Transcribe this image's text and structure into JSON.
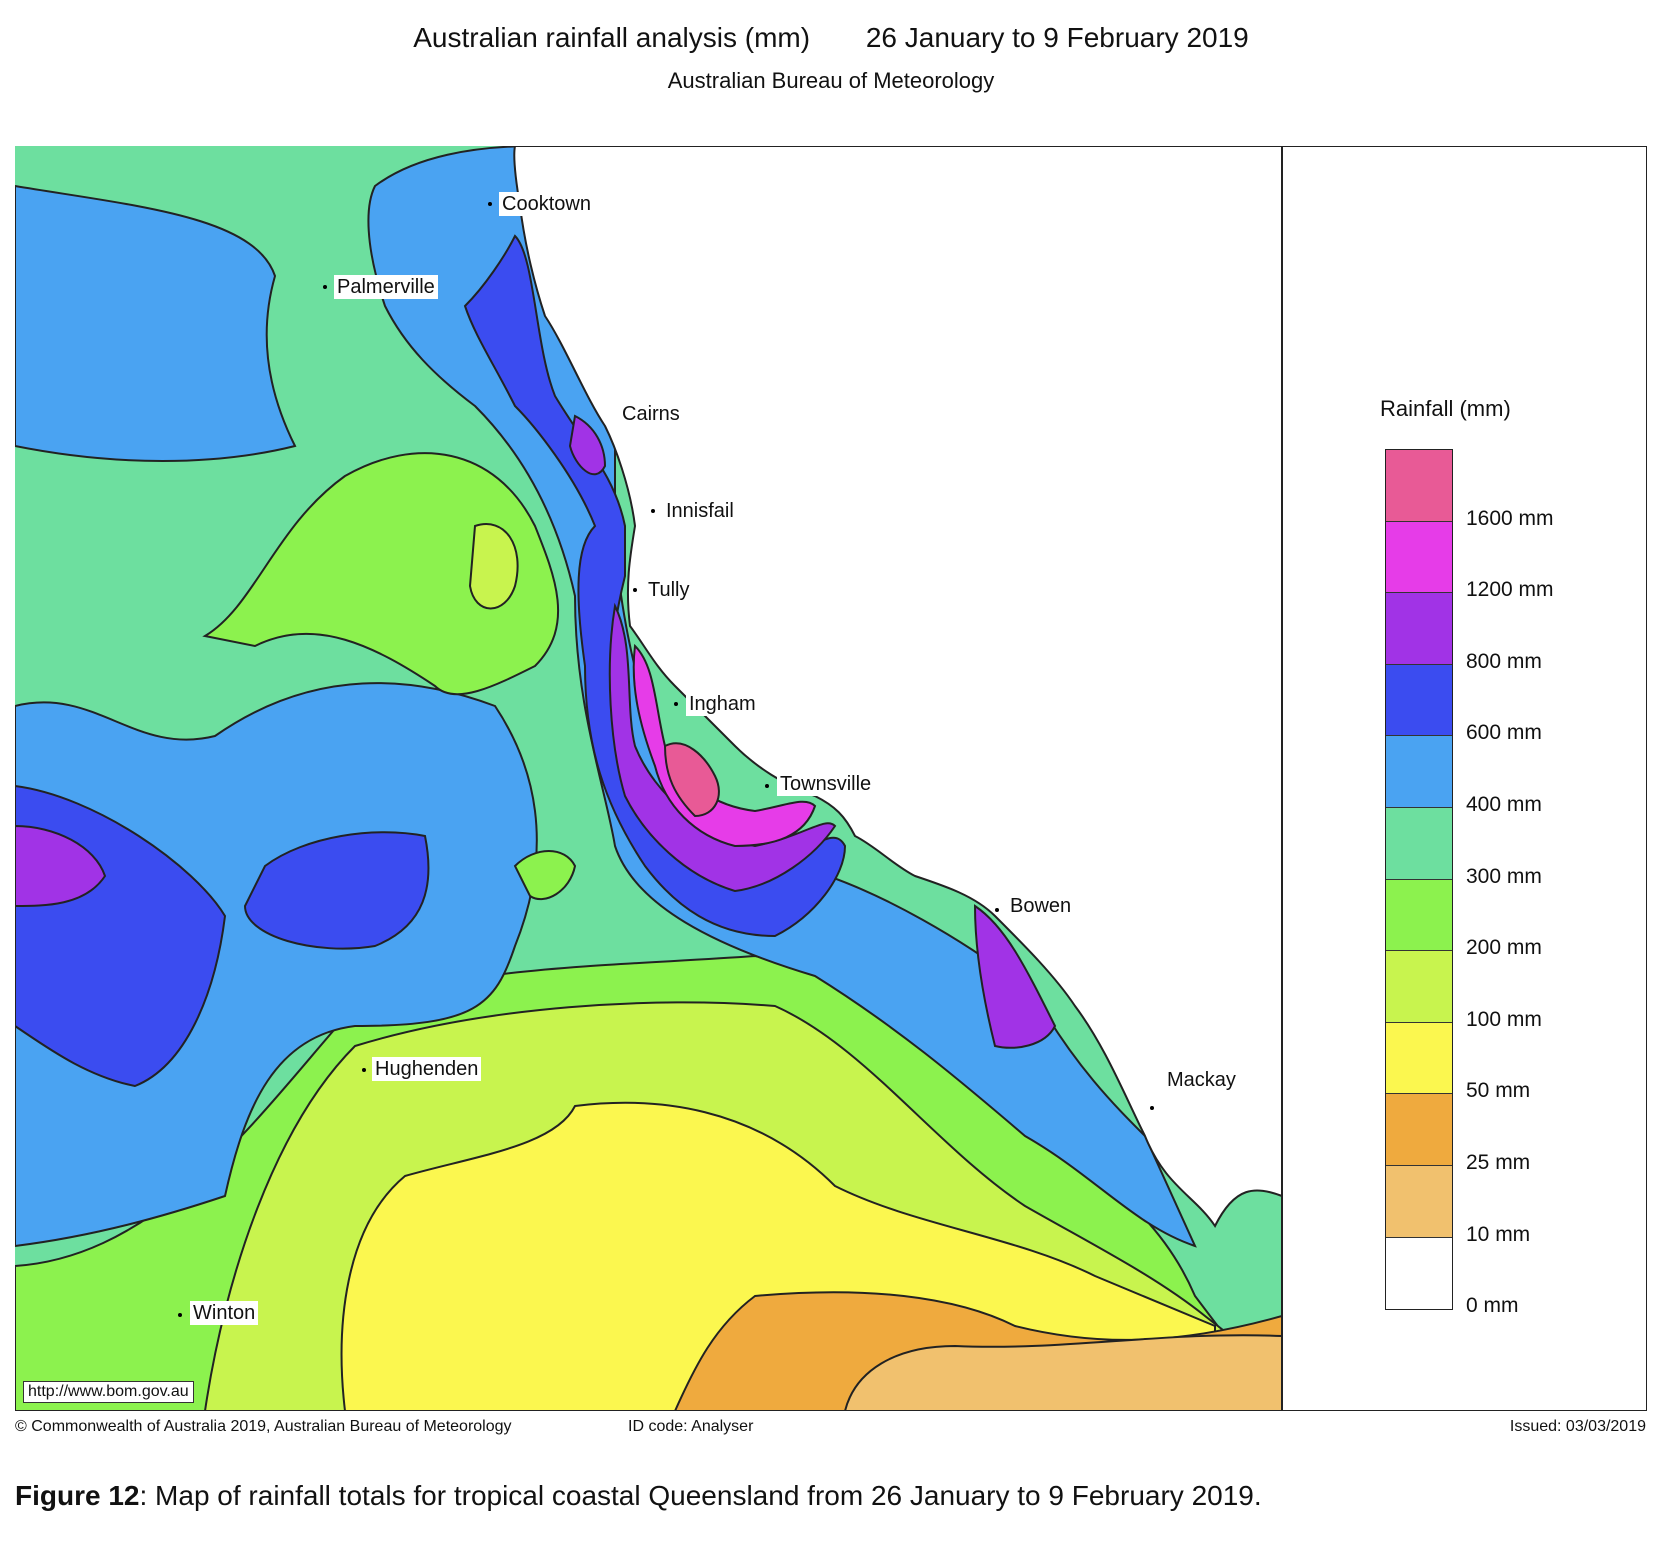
{
  "header": {
    "title": "Australian rainfall analysis (mm)",
    "period": "26 January to 9 February 2019",
    "subtitle": "Australian Bureau of Meteorology"
  },
  "map": {
    "url": "http://www.bom.gov.au",
    "towns": [
      {
        "name": "Cooktown"
      },
      {
        "name": "Palmerville"
      },
      {
        "name": "Cairns"
      },
      {
        "name": "Innisfail"
      },
      {
        "name": "Tully"
      },
      {
        "name": "Ingham"
      },
      {
        "name": "Townsville"
      },
      {
        "name": "Bowen"
      },
      {
        "name": "Mackay"
      },
      {
        "name": "Hughenden"
      },
      {
        "name": "Winton"
      }
    ]
  },
  "legend": {
    "title": "Rainfall (mm)",
    "levels": [
      {
        "label": "1600 mm",
        "color": "#e85a96"
      },
      {
        "label": "1200 mm",
        "color": "#e63ce8"
      },
      {
        "label": "800 mm",
        "color": "#a133e6"
      },
      {
        "label": "600 mm",
        "color": "#3b4cf0"
      },
      {
        "label": "400 mm",
        "color": "#4aa3f2"
      },
      {
        "label": "300 mm",
        "color": "#6ddf9f"
      },
      {
        "label": "200 mm",
        "color": "#8cf24e"
      },
      {
        "label": "100 mm",
        "color": "#c8f44e"
      },
      {
        "label": "50 mm",
        "color": "#fbf74f"
      },
      {
        "label": "25 mm",
        "color": "#efaa3e"
      },
      {
        "label": "10 mm",
        "color": "#f1c16e"
      },
      {
        "label": "0 mm",
        "color": "#ffffff"
      }
    ]
  },
  "footer": {
    "copyright_symbol": "©",
    "copyright": "Commonwealth of Australia 2019, Australian Bureau of Meteorology",
    "id_code": "ID code: Analyser",
    "issued": "Issued: 03/03/2019"
  },
  "caption": {
    "label": "Figure 12",
    "text": ": Map of rainfall totals for tropical coastal Queensland from 26 January to 9 February 2019."
  }
}
